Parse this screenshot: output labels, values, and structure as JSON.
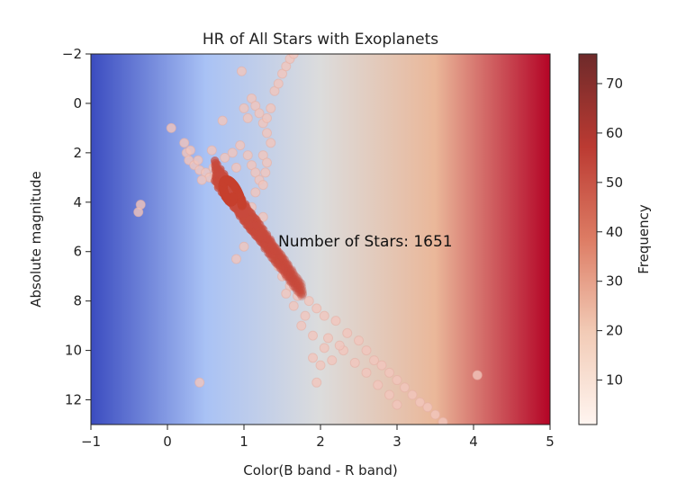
{
  "chart_data": {
    "type": "scatter",
    "title": "HR of All Stars with Exoplanets",
    "xlabel": "Color(B band - R band)",
    "ylabel": "Absolute magnitude",
    "xlim": [
      -1,
      5
    ],
    "ylim": [
      13,
      -2
    ],
    "y_inverted": true,
    "x_ticks": [
      "−1",
      "0",
      "1",
      "2",
      "3",
      "4",
      "5"
    ],
    "y_ticks": [
      "−2",
      "0",
      "2",
      "4",
      "6",
      "8",
      "10",
      "12"
    ],
    "colorbar": {
      "label": "Frequency",
      "range": [
        1,
        76
      ],
      "ticks": [
        "10",
        "20",
        "30",
        "40",
        "50",
        "60",
        "70"
      ],
      "colormap": "reds"
    },
    "background_gradient": [
      "#3b4cc0",
      "#a9c2f5",
      "#dcdcdc",
      "#eab799",
      "#b40426"
    ],
    "annotation": "Number of Stars: 1651",
    "point_color": "#c84a3c",
    "grid": false,
    "points": [
      [
        0.05,
        1.0
      ],
      [
        0.22,
        1.6
      ],
      [
        0.25,
        2.0
      ],
      [
        0.28,
        2.3
      ],
      [
        0.3,
        1.9
      ],
      [
        0.35,
        2.5
      ],
      [
        0.42,
        2.7
      ],
      [
        0.5,
        2.8
      ],
      [
        0.55,
        3.0
      ],
      [
        0.62,
        2.9
      ],
      [
        0.66,
        3.3
      ],
      [
        0.7,
        3.1
      ],
      [
        0.6,
        2.6
      ],
      [
        0.58,
        1.9
      ],
      [
        0.75,
        2.2
      ],
      [
        0.85,
        2.0
      ],
      [
        0.9,
        2.6
      ],
      [
        0.95,
        1.7
      ],
      [
        1.05,
        2.1
      ],
      [
        1.1,
        2.5
      ],
      [
        1.15,
        2.8
      ],
      [
        1.2,
        3.1
      ],
      [
        0.72,
        0.7
      ],
      [
        0.97,
        -1.3
      ],
      [
        1.0,
        0.2
      ],
      [
        1.05,
        0.6
      ],
      [
        1.1,
        -0.2
      ],
      [
        1.15,
        0.1
      ],
      [
        1.2,
        0.4
      ],
      [
        1.25,
        0.8
      ],
      [
        1.3,
        0.6
      ],
      [
        1.35,
        0.2
      ],
      [
        1.4,
        -0.5
      ],
      [
        1.45,
        -0.8
      ],
      [
        1.5,
        -1.2
      ],
      [
        1.55,
        -1.5
      ],
      [
        1.6,
        -1.8
      ],
      [
        1.65,
        -2.0
      ],
      [
        1.3,
        1.2
      ],
      [
        1.35,
        1.6
      ],
      [
        1.25,
        2.1
      ],
      [
        1.3,
        2.4
      ],
      [
        1.28,
        2.8
      ],
      [
        0.4,
        2.3
      ],
      [
        0.45,
        3.1
      ],
      [
        1.25,
        3.3
      ],
      [
        1.15,
        3.6
      ],
      [
        1.1,
        4.2
      ],
      [
        1.25,
        4.6
      ],
      [
        -0.35,
        4.1
      ],
      [
        -0.38,
        4.4
      ],
      [
        0.42,
        11.3
      ],
      [
        0.9,
        6.3
      ],
      [
        1.0,
        5.8
      ],
      [
        1.95,
        11.3
      ],
      [
        4.05,
        11.0
      ],
      [
        3.6,
        12.9
      ],
      [
        2.2,
        8.8
      ],
      [
        2.35,
        9.3
      ],
      [
        2.5,
        9.6
      ],
      [
        2.6,
        10.0
      ],
      [
        2.7,
        10.4
      ],
      [
        2.8,
        10.6
      ],
      [
        2.9,
        10.9
      ],
      [
        3.0,
        11.2
      ],
      [
        3.1,
        11.5
      ],
      [
        3.2,
        11.8
      ],
      [
        3.3,
        12.1
      ],
      [
        3.4,
        12.3
      ],
      [
        3.5,
        12.6
      ],
      [
        1.9,
        10.3
      ],
      [
        2.0,
        10.6
      ],
      [
        2.1,
        9.5
      ],
      [
        2.3,
        10.0
      ],
      [
        2.45,
        10.5
      ],
      [
        2.6,
        10.9
      ],
      [
        2.75,
        11.4
      ],
      [
        2.9,
        11.8
      ],
      [
        3.0,
        12.2
      ],
      [
        2.25,
        9.8
      ],
      [
        1.85,
        8.0
      ],
      [
        1.95,
        8.3
      ],
      [
        2.05,
        8.6
      ],
      [
        1.8,
        8.6
      ],
      [
        1.7,
        7.8
      ],
      [
        1.6,
        7.4
      ],
      [
        1.5,
        7.0
      ],
      [
        1.45,
        6.6
      ],
      [
        1.55,
        7.7
      ],
      [
        1.65,
        8.2
      ],
      [
        1.75,
        9.0
      ],
      [
        1.9,
        9.4
      ],
      [
        2.05,
        9.9
      ],
      [
        2.15,
        10.4
      ]
    ]
  }
}
